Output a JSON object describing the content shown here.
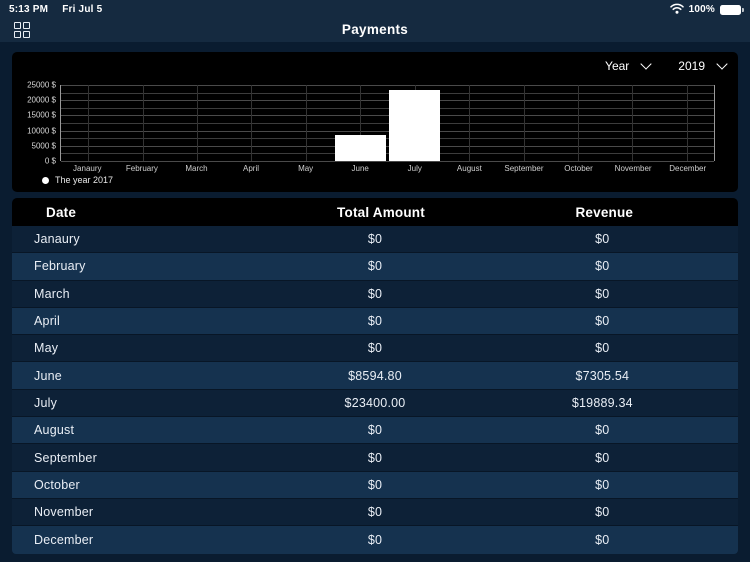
{
  "status_bar": {
    "time": "5:13 PM",
    "date": "Fri Jul 5",
    "battery_percent": "100%"
  },
  "header": {
    "title": "Payments"
  },
  "filters": {
    "period_label": "Year",
    "year_value": "2019"
  },
  "chart_data": {
    "type": "bar",
    "title": "",
    "categories": [
      "Janaury",
      "February",
      "March",
      "April",
      "May",
      "June",
      "July",
      "August",
      "September",
      "October",
      "November",
      "December"
    ],
    "values": [
      0,
      0,
      0,
      0,
      0,
      8594.8,
      23400.0,
      0,
      0,
      0,
      0,
      0
    ],
    "series_name": "The year 2017",
    "legend": [
      "The year 2017"
    ],
    "legend_position": "bottom-left",
    "xlabel": "",
    "ylabel": "",
    "ylim": [
      0,
      25000
    ],
    "ytick_major_step": 5000,
    "ytick_minor_step": 2500,
    "ytick_labels": [
      "25000 $",
      "20000 $",
      "15000 $",
      "10000 $",
      "5000 $",
      "0 $"
    ],
    "grid": true,
    "bar_color": "#ffffff",
    "background": "#000000"
  },
  "table": {
    "columns": [
      "Date",
      "Total Amount",
      "Revenue"
    ],
    "rows": [
      [
        "Janaury",
        "$0",
        "$0"
      ],
      [
        "February",
        "$0",
        "$0"
      ],
      [
        "March",
        "$0",
        "$0"
      ],
      [
        "April",
        "$0",
        "$0"
      ],
      [
        "May",
        "$0",
        "$0"
      ],
      [
        "June",
        "$8594.80",
        "$7305.54"
      ],
      [
        "July",
        "$23400.00",
        "$19889.34"
      ],
      [
        "August",
        "$0",
        "$0"
      ],
      [
        "September",
        "$0",
        "$0"
      ],
      [
        "October",
        "$0",
        "$0"
      ],
      [
        "November",
        "$0",
        "$0"
      ],
      [
        "December",
        "$0",
        "$0"
      ]
    ]
  },
  "colors": {
    "page_bg": "#0a1c30",
    "top_bar_bg": "#152a40",
    "card_bg": "#000000",
    "row_dark": "#0d2137",
    "row_light": "#15324f",
    "accent_text": "#ffffff"
  }
}
